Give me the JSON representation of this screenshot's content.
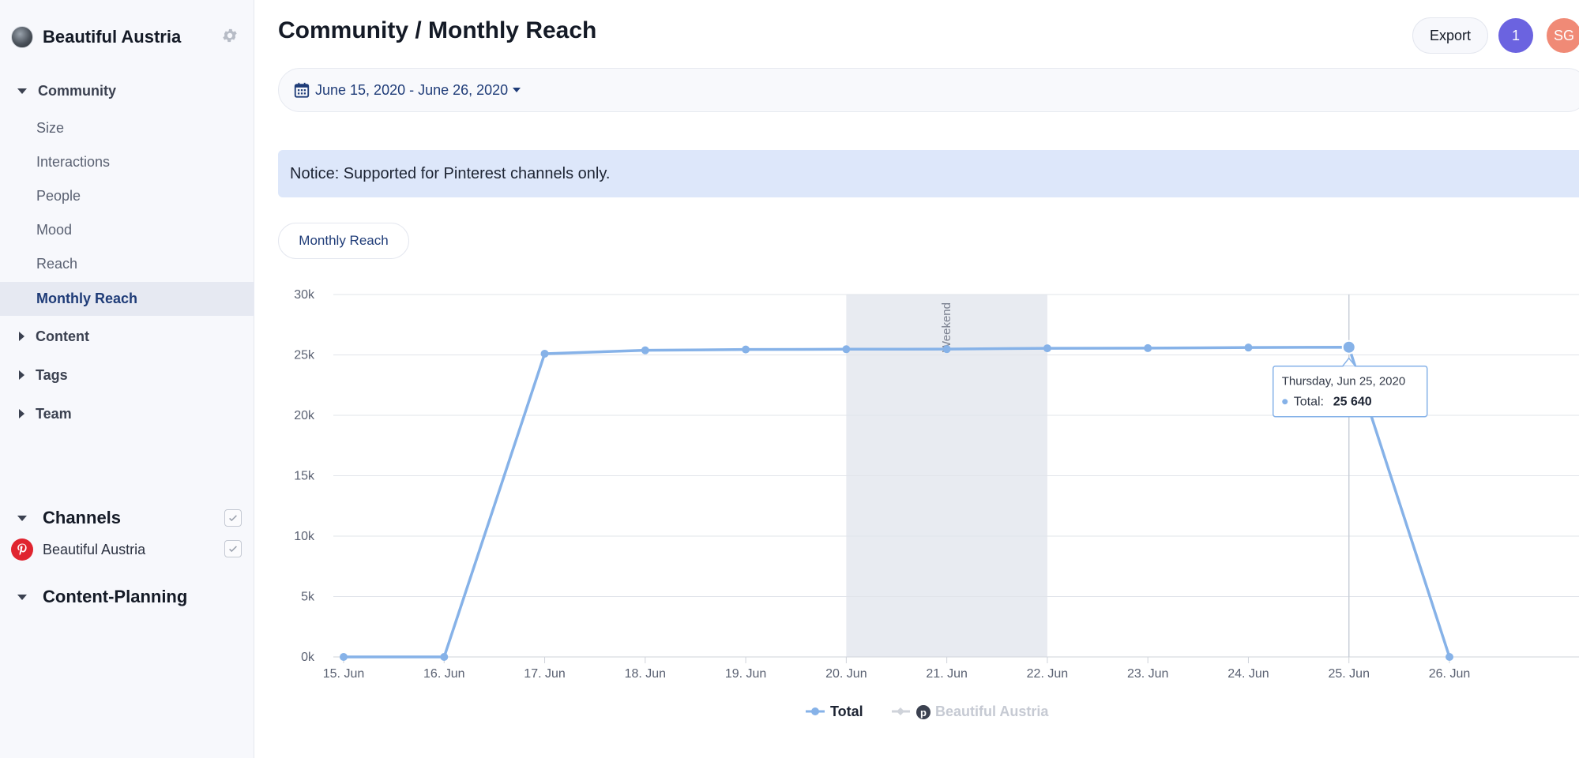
{
  "sidebar": {
    "brand_name": "Beautiful Austria",
    "community": {
      "label": "Community",
      "items": [
        {
          "label": "Size"
        },
        {
          "label": "Interactions"
        },
        {
          "label": "People"
        },
        {
          "label": "Mood"
        },
        {
          "label": "Reach"
        },
        {
          "label": "Monthly Reach",
          "active": true
        }
      ]
    },
    "content_label": "Content",
    "tags_label": "Tags",
    "team_label": "Team",
    "channels_label": "Channels",
    "channel_name": "Beautiful Austria",
    "content_planning_label": "Content-Planning"
  },
  "header": {
    "title": "Community / Monthly Reach",
    "export_label": "Export",
    "notification_count": "1",
    "user_initials": "SG"
  },
  "date_range": "June 15, 2020 - June 26, 2020",
  "notice": "Notice: Supported for Pinterest channels only.",
  "tab_label": "Monthly Reach",
  "colors": {
    "accent": "#1f3c78",
    "series": "#86b2e8",
    "weekend_band": "#e8ebf1",
    "notice_bg": "#dde7fa",
    "pinterest": "#e0242f"
  },
  "chart_data": {
    "type": "line",
    "categories": [
      "15. Jun",
      "16. Jun",
      "17. Jun",
      "18. Jun",
      "19. Jun",
      "20. Jun",
      "21. Jun",
      "22. Jun",
      "23. Jun",
      "24. Jun",
      "25. Jun",
      "26. Jun"
    ],
    "series": [
      {
        "name": "Total",
        "values": [
          0,
          0,
          25100,
          25380,
          25450,
          25470,
          25480,
          25550,
          25560,
          25610,
          25640,
          0
        ]
      }
    ],
    "yticks": [
      "0k",
      "5k",
      "10k",
      "15k",
      "20k",
      "25k",
      "30k"
    ],
    "ylim": [
      0,
      30000
    ],
    "band": {
      "from": "20. Jun",
      "to": "22. Jun",
      "label": "Weekend"
    },
    "legend": [
      "Total",
      "Beautiful Austria"
    ],
    "legend_position": "bottom",
    "grid": true,
    "tooltip": {
      "date": "Thursday, Jun 25, 2020",
      "series_label": "Total:",
      "value": "25 640",
      "point_index": 10
    }
  }
}
